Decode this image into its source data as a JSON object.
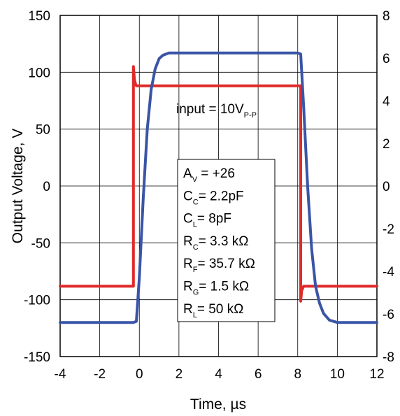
{
  "chart_data": {
    "type": "line",
    "title": "",
    "xlabel": "Time, µs",
    "ylabel": "Output Voltage, V",
    "xlim": [
      -4,
      12
    ],
    "ylim": [
      -150,
      150
    ],
    "y2lim": [
      -8,
      8
    ],
    "grid": true,
    "x_ticks": [
      "-4",
      "-2",
      "0",
      "2",
      "4",
      "6",
      "8",
      "10",
      "12"
    ],
    "y_ticks": [
      "150",
      "100",
      "50",
      "0",
      "-50",
      "-100",
      "-150"
    ],
    "y2_ticks": [
      "8",
      "6",
      "4",
      "2",
      "0",
      "-2",
      "-4",
      "-6",
      "-8"
    ],
    "series": [
      {
        "axis": "left",
        "color": "#3a55a6",
        "x": [
          -4,
          -0.3,
          -0.15,
          0,
          0.2,
          0.4,
          0.6,
          0.8,
          1.0,
          1.2,
          1.5,
          2,
          4,
          6,
          8,
          8.15,
          8.3,
          8.5,
          8.7,
          8.9,
          9.1,
          9.3,
          9.6,
          10,
          12
        ],
        "y": [
          -120,
          -120,
          -119,
          -80,
          -10,
          50,
          85,
          103,
          112,
          115,
          117,
          117,
          117,
          117,
          117,
          116,
          70,
          0,
          -55,
          -88,
          -103,
          -112,
          -118,
          -120,
          -120
        ]
      },
      {
        "axis": "right",
        "color": "#e02a2a",
        "x": [
          -4,
          -0.3,
          -0.3,
          -0.25,
          -0.2,
          -0.15,
          0,
          8.15,
          8.15,
          8.2,
          8.25,
          8.3,
          8.5,
          12
        ],
        "y": [
          -4.7,
          -4.7,
          5.6,
          5.0,
          4.8,
          4.7,
          4.7,
          4.7,
          -5.4,
          -4.9,
          -4.8,
          -4.7,
          -4.7,
          -4.7
        ]
      }
    ],
    "annotations": {
      "input_main": "input = 10V",
      "input_sub": "P-P",
      "params": [
        {
          "main": "A",
          "sub": "V",
          "rest": " = +26"
        },
        {
          "main": "C",
          "sub": "C",
          "rest": "= 2.2pF"
        },
        {
          "main": "C",
          "sub": "L",
          "rest": "= 8pF"
        },
        {
          "main": "R",
          "sub": "C",
          "rest": "= 3.3 kΩ"
        },
        {
          "main": "R",
          "sub": "F",
          "rest": "= 35.7 kΩ"
        },
        {
          "main": "R",
          "sub": "G",
          "rest": "= 1.5 kΩ"
        },
        {
          "main": "R",
          "sub": "L",
          "rest": "= 50 kΩ"
        }
      ]
    }
  }
}
